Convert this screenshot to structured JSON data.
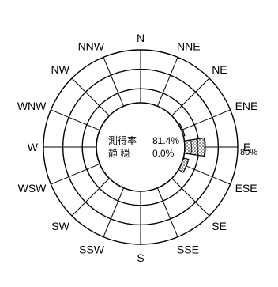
{
  "chart_data": {
    "type": "wind-rose",
    "directions": [
      "N",
      "NNE",
      "NE",
      "ENE",
      "E",
      "ESE",
      "SE",
      "SSE",
      "S",
      "SSW",
      "SW",
      "WSW",
      "W",
      "WNW",
      "NW",
      "NNW"
    ],
    "max_radius_percent": 80,
    "rings": 5,
    "scale_label": "80%",
    "values": [
      0,
      0,
      0,
      2,
      31,
      8,
      0,
      0,
      0,
      0,
      0,
      0,
      0,
      0,
      0,
      0
    ],
    "center": {
      "row1_label": "測得率",
      "row1_value": "81.4%",
      "row2_label": "静 穏",
      "row2_value": "0.0%"
    },
    "colors": {
      "stroke": "#000000",
      "sector_fill": "#ffffff",
      "dots": "#000000"
    }
  }
}
